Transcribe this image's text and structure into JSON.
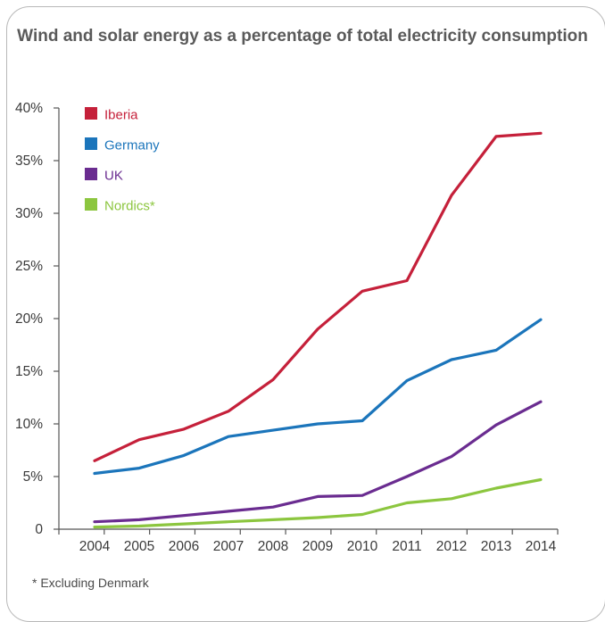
{
  "chart_data": {
    "type": "line",
    "title": "Wind and solar energy as a percentage of total electricity consumption",
    "xlabel": "",
    "ylabel": "",
    "categories": [
      "2004",
      "2005",
      "2006",
      "2007",
      "2008",
      "2009",
      "2010",
      "2011",
      "2012",
      "2013",
      "2014"
    ],
    "y_tick_labels": [
      "0",
      "5%",
      "10%",
      "15%",
      "20%",
      "25%",
      "30%",
      "35%",
      "40%"
    ],
    "ylim": [
      0,
      40
    ],
    "grid": false,
    "legend_position": "top-left",
    "series": [
      {
        "name": "Iberia",
        "color": "#c5203a",
        "values": [
          6.5,
          8.5,
          9.5,
          11.2,
          14.2,
          19.0,
          22.6,
          23.6,
          31.7,
          37.3,
          37.6
        ]
      },
      {
        "name": "Germany",
        "color": "#1b75bb",
        "values": [
          5.3,
          5.8,
          7.0,
          8.8,
          9.4,
          10.0,
          10.3,
          14.1,
          16.1,
          17.0,
          19.9
        ]
      },
      {
        "name": "UK",
        "color": "#6a2c90",
        "values": [
          0.7,
          0.9,
          1.3,
          1.7,
          2.1,
          3.1,
          3.2,
          5.0,
          6.9,
          9.9,
          12.1
        ]
      },
      {
        "name": "Nordics*",
        "color": "#8cc63f",
        "values": [
          0.2,
          0.3,
          0.5,
          0.7,
          0.9,
          1.1,
          1.4,
          2.5,
          2.9,
          3.9,
          4.7
        ]
      }
    ],
    "footnote": "* Excluding Denmark"
  }
}
